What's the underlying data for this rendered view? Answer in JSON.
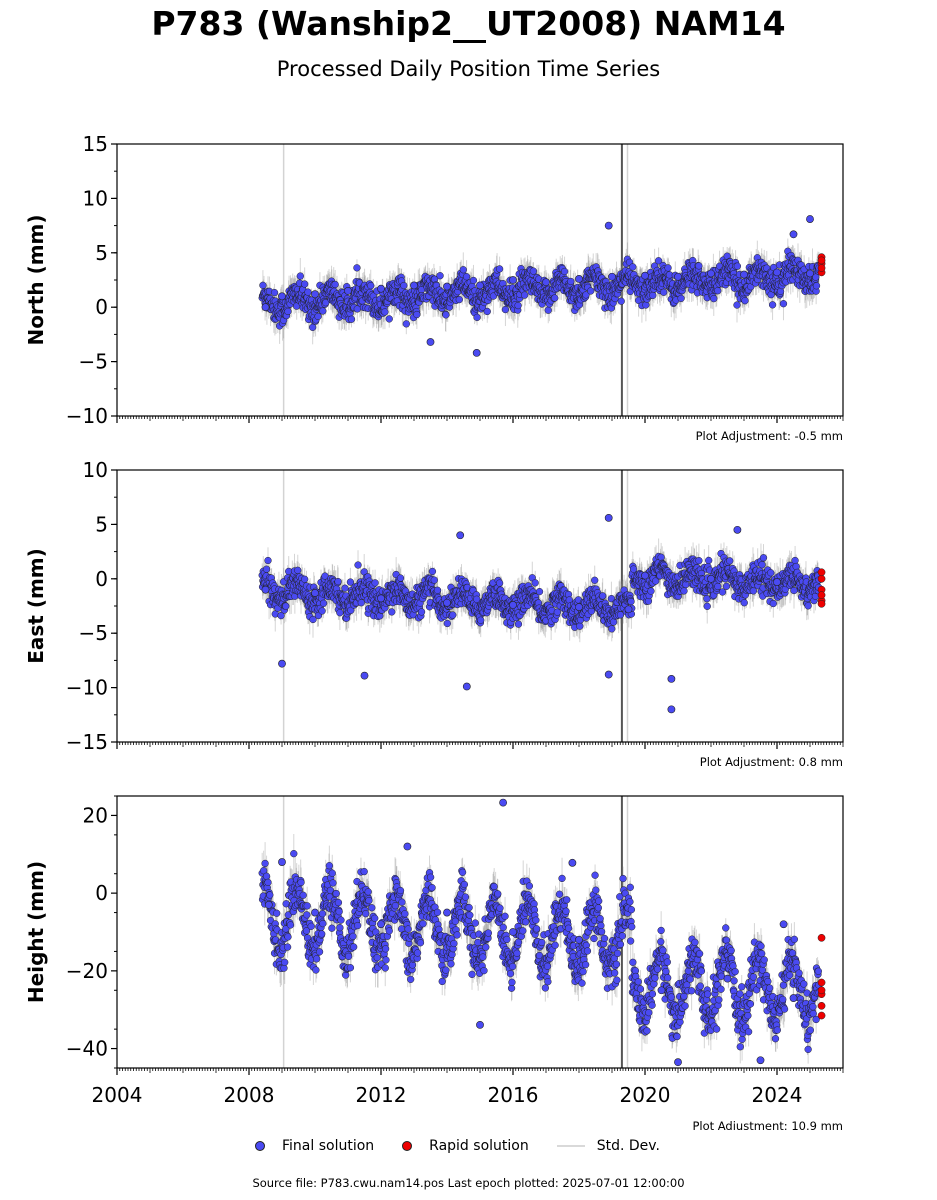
{
  "title": "P783 (Wanship2__UT2008) NAM14",
  "subtitle": "Processed Daily Position Time Series",
  "footer": "Source file: P783.cwu.nam14.pos  Last epoch plotted: 2025-07-01 12:00:00",
  "legend": {
    "final": "Final solution",
    "rapid": "Rapid solution",
    "std": "Std. Dev."
  },
  "colors": {
    "final": "#4a4af2",
    "rapid": "#ee0000",
    "errorbar": "#888888",
    "vline": "#d3d3d3"
  },
  "chart_data": [
    {
      "type": "scatter",
      "ylabel": "North (mm)",
      "ylim": [
        -10,
        15
      ],
      "yticks": [
        -10,
        -5,
        0,
        5,
        10,
        15
      ],
      "ytick_labels": [
        "−10",
        "−5",
        "0",
        "5",
        "10",
        "15"
      ],
      "adjustment": "Plot Adjustment: -0.5 mm",
      "xlim": [
        2004,
        2026
      ],
      "trend": [
        [
          2008.4,
          0.3
        ],
        [
          2025.3,
          3.0
        ]
      ],
      "seasonal_amp": 0.8,
      "final_points": [
        [
          2008.5,
          0.0
        ],
        [
          2009.0,
          1.0
        ],
        [
          2010.0,
          1.2
        ],
        [
          2011.0,
          1.5
        ],
        [
          2012.0,
          1.7
        ],
        [
          2013.0,
          2.0
        ],
        [
          2014.0,
          1.9
        ],
        [
          2015.0,
          2.0
        ],
        [
          2016.0,
          2.5
        ],
        [
          2017.0,
          2.3
        ],
        [
          2018.0,
          2.6
        ],
        [
          2019.0,
          2.8
        ],
        [
          2020.0,
          2.9
        ],
        [
          2021.0,
          2.8
        ],
        [
          2022.0,
          3.1
        ],
        [
          2023.0,
          3.0
        ],
        [
          2024.0,
          3.2
        ],
        [
          2025.0,
          3.1
        ],
        [
          2018.9,
          7.5
        ],
        [
          2025.0,
          8.1
        ],
        [
          2013.5,
          -3.2
        ],
        [
          2014.9,
          -4.2
        ],
        [
          2024.5,
          6.7
        ]
      ],
      "rapid_points": [
        [
          2025.35,
          3.2
        ],
        [
          2025.35,
          4.0
        ],
        [
          2025.35,
          4.6
        ],
        [
          2025.35,
          3.6
        ],
        [
          2025.35,
          4.3
        ]
      ]
    },
    {
      "type": "scatter",
      "ylabel": "East (mm)",
      "ylim": [
        -15,
        10
      ],
      "yticks": [
        -15,
        -10,
        -5,
        0,
        5,
        10
      ],
      "ytick_labels": [
        "−15",
        "−10",
        "−5",
        "0",
        "5",
        "10"
      ],
      "adjustment": "Plot Adjustment: 0.8 mm",
      "xlim": [
        2004,
        2026
      ],
      "segments": [
        [
          2008.4,
          2019.6,
          -1.0,
          -2.8
        ],
        [
          2019.6,
          2025.3,
          0.2,
          -0.4
        ]
      ],
      "seasonal_amp": 0.8,
      "final_points": [
        [
          2008.5,
          -1.0
        ],
        [
          2010.0,
          -1.3
        ],
        [
          2012.0,
          -1.8
        ],
        [
          2014.0,
          -2.2
        ],
        [
          2016.0,
          -2.4
        ],
        [
          2018.0,
          -2.6
        ],
        [
          2019.5,
          -2.8
        ],
        [
          2020.0,
          0.3
        ],
        [
          2022.0,
          0.0
        ],
        [
          2024.0,
          -0.3
        ],
        [
          2018.9,
          5.6
        ],
        [
          2014.4,
          4.0
        ],
        [
          2020.8,
          -12.0
        ],
        [
          2020.8,
          -9.2
        ],
        [
          2014.6,
          -9.9
        ],
        [
          2009.0,
          -7.8
        ],
        [
          2011.5,
          -8.9
        ],
        [
          2018.9,
          -8.8
        ],
        [
          2022.8,
          4.5
        ]
      ],
      "rapid_points": [
        [
          2025.35,
          -2.0
        ],
        [
          2025.35,
          -1.0
        ],
        [
          2025.35,
          0.0
        ],
        [
          2025.35,
          0.6
        ],
        [
          2025.35,
          -1.5
        ],
        [
          2025.35,
          -2.3
        ]
      ]
    },
    {
      "type": "scatter",
      "ylabel": "Height (mm)",
      "ylim": [
        -45,
        25
      ],
      "yticks": [
        -40,
        -20,
        0,
        20
      ],
      "ytick_labels": [
        "−40",
        "−20",
        "0",
        "20"
      ],
      "adjustment": "Plot Adjustment: 10.9 mm",
      "xlim": [
        2004,
        2026
      ],
      "xticks": [
        2004,
        2008,
        2012,
        2016,
        2020,
        2024
      ],
      "xtick_labels": [
        "2004",
        "2008",
        "2012",
        "2016",
        "2020",
        "2024"
      ],
      "segments": [
        [
          2008.4,
          2019.6,
          -6.0,
          -12.0
        ],
        [
          2019.6,
          2025.3,
          -24.0,
          -25.0
        ]
      ],
      "seasonal_amp": 8.0,
      "final_points": [
        [
          2008.6,
          -3.0
        ],
        [
          2009.0,
          8.0
        ],
        [
          2010.0,
          -5.0
        ],
        [
          2012.0,
          -8.0
        ],
        [
          2014.0,
          -5.0
        ],
        [
          2016.0,
          -10.0
        ],
        [
          2018.0,
          -12.0
        ],
        [
          2020.5,
          -25.0
        ],
        [
          2022.5,
          -22.0
        ],
        [
          2024.5,
          -27.0
        ],
        [
          2015.7,
          23.3
        ],
        [
          2015.0,
          -33.9
        ],
        [
          2021.0,
          -43.5
        ],
        [
          2023.5,
          -43.0
        ],
        [
          2012.8,
          12.0
        ],
        [
          2017.8,
          7.8
        ],
        [
          2024.2,
          -8.0
        ]
      ],
      "rapid_points": [
        [
          2025.35,
          -11.5
        ],
        [
          2025.35,
          -23.0
        ],
        [
          2025.35,
          -26.0
        ],
        [
          2025.35,
          -29.0
        ],
        [
          2025.35,
          -31.5
        ],
        [
          2025.35,
          -25.0
        ]
      ]
    }
  ],
  "event_lines": [
    2009.05,
    2019.3,
    2019.47
  ]
}
